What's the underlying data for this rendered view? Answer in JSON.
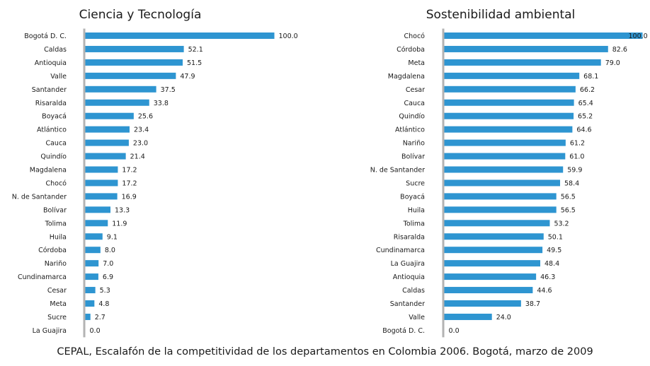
{
  "colors": {
    "bar": "#2e95d1",
    "axis": "#b3b3b3",
    "text": "#1a1a1a"
  },
  "chart_data": [
    {
      "type": "bar",
      "orientation": "horizontal",
      "title": "Ciencia y Tecnología",
      "xlim": [
        0,
        100
      ],
      "categories": [
        "Bogotá D. C.",
        "Caldas",
        "Antioquia",
        "Valle",
        "Santander",
        "Risaralda",
        "Boyacá",
        "Atlántico",
        "Cauca",
        "Quindío",
        "Magdalena",
        "Chocó",
        "N. de Santander",
        "Bolívar",
        "Tolima",
        "Huila",
        "Córdoba",
        "Nariño",
        "Cundinamarca",
        "Cesar",
        "Meta",
        "Sucre",
        "La Guajira"
      ],
      "values": [
        100.0,
        52.1,
        51.5,
        47.9,
        37.5,
        33.8,
        25.6,
        23.4,
        23.0,
        21.4,
        17.2,
        17.2,
        16.9,
        13.3,
        11.9,
        9.1,
        8.0,
        7.0,
        6.9,
        5.3,
        4.8,
        2.7,
        0.0
      ],
      "value_labels": [
        "100.0",
        "52.1",
        "51.5",
        "47.9",
        "37.5",
        "33.8",
        "25.6",
        "23.4",
        "23.0",
        "21.4",
        "17.2",
        "17.2",
        "16.9",
        "13.3",
        "11.9",
        "9.1",
        "8.0",
        "7.0",
        "6.9",
        "5.3",
        "4.8",
        "2.7",
        "0.0"
      ]
    },
    {
      "type": "bar",
      "orientation": "horizontal",
      "title": "Sostenibilidad ambiental",
      "xlim": [
        0,
        100
      ],
      "categories": [
        "Chocó",
        "Córdoba",
        "Meta",
        "Magdalena",
        "Cesar",
        "Cauca",
        "Quindío",
        "Atlántico",
        "Nariño",
        "Bolívar",
        "N. de Santander",
        "Sucre",
        "Boyacá",
        "Huila",
        "Tolima",
        "Risaralda",
        "Cundinamarca",
        "La Guajira",
        "Antioquia",
        "Caldas",
        "Santander",
        "Valle",
        "Bogotá D. C."
      ],
      "values": [
        100.0,
        82.6,
        79.0,
        68.1,
        66.2,
        65.4,
        65.2,
        64.6,
        61.2,
        61.0,
        59.9,
        58.4,
        56.5,
        56.5,
        53.2,
        50.1,
        49.5,
        48.4,
        46.3,
        44.6,
        38.7,
        24.0,
        0.0
      ],
      "value_labels": [
        "100.0",
        "82.6",
        "79.0",
        "68.1",
        "66.2",
        "65.4",
        "65.2",
        "64.6",
        "61.2",
        "61.0",
        "59.9",
        "58.4",
        "56.5",
        "56.5",
        "53.2",
        "50.1",
        "49.5",
        "48.4",
        "46.3",
        "44.6",
        "38.7",
        "24.0",
        "0.0"
      ]
    }
  ],
  "caption": "CEPAL, Escalafón de la competitividad de los departamentos en Colombia 2006. Bogotá, marzo de 2009"
}
